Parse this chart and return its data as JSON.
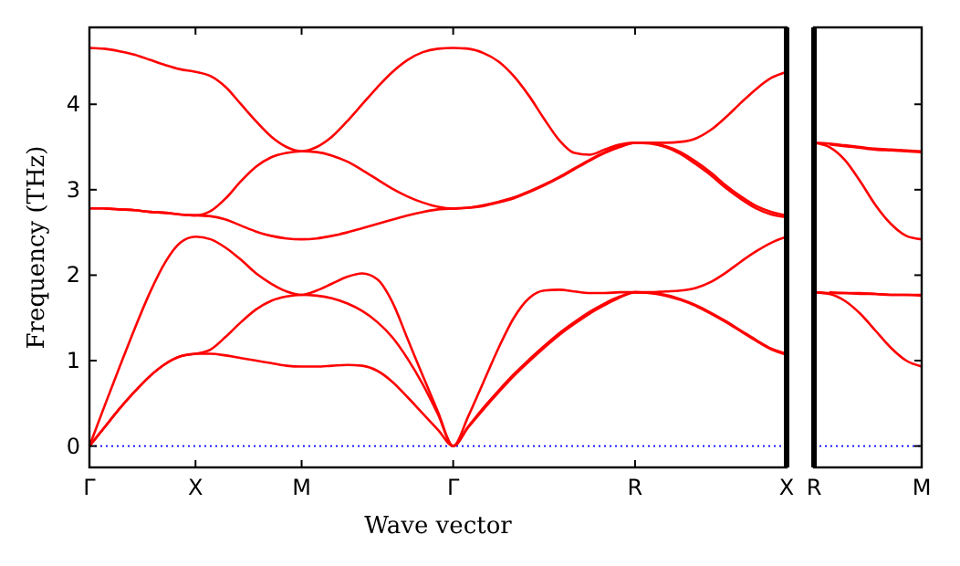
{
  "chart_data": [
    {
      "type": "line",
      "xlabel": "Wave vector",
      "ylabel": "Frequency (THz)",
      "categories": [
        "Γ",
        null,
        null,
        null,
        null,
        null,
        null,
        "X",
        null,
        null,
        null,
        null,
        null,
        null,
        "M",
        null,
        null,
        null,
        null,
        null,
        null,
        null,
        null,
        null,
        "Γ",
        null,
        null,
        null,
        null,
        null,
        null,
        null,
        null,
        null,
        null,
        null,
        "R",
        null,
        null,
        null,
        null,
        null,
        null,
        null,
        null,
        null,
        "X"
      ],
      "ylim": [
        -0.25,
        4.9
      ],
      "yticks": [
        0,
        1,
        2,
        3,
        4
      ],
      "grid": false,
      "marker": "none",
      "line_style": "solid",
      "ref_lines": [
        {
          "axis": "y",
          "value": 0,
          "color": "#0000ff",
          "line_style": "dotted"
        }
      ],
      "series": [
        {
          "color": "#ff0000",
          "values": [
            0,
            0.22,
            0.44,
            0.64,
            0.82,
            0.96,
            1.05,
            1.08,
            1.08,
            1.06,
            1.03,
            1.0,
            0.97,
            0.94,
            0.93,
            0.93,
            0.94,
            0.95,
            0.94,
            0.88,
            0.75,
            0.57,
            0.38,
            0.19,
            0,
            0.22,
            0.43,
            0.63,
            0.82,
            0.99,
            1.15,
            1.3,
            1.43,
            1.55,
            1.65,
            1.74,
            1.8,
            1.79,
            1.77,
            1.72,
            1.65,
            1.56,
            1.46,
            1.35,
            1.24,
            1.14,
            1.08
          ]
        },
        {
          "color": "#ff0000",
          "values": [
            0,
            0.22,
            0.44,
            0.64,
            0.82,
            0.96,
            1.05,
            1.08,
            1.13,
            1.28,
            1.45,
            1.6,
            1.7,
            1.75,
            1.77,
            1.76,
            1.73,
            1.67,
            1.58,
            1.45,
            1.27,
            1.02,
            0.72,
            0.37,
            0,
            0.23,
            0.45,
            0.65,
            0.84,
            1.01,
            1.17,
            1.32,
            1.45,
            1.57,
            1.67,
            1.75,
            1.8,
            1.79,
            1.76,
            1.71,
            1.64,
            1.55,
            1.45,
            1.34,
            1.23,
            1.13,
            1.07
          ]
        },
        {
          "color": "#ff0000",
          "values": [
            0,
            0.47,
            0.93,
            1.38,
            1.8,
            2.15,
            2.38,
            2.45,
            2.42,
            2.32,
            2.18,
            2.02,
            1.9,
            1.81,
            1.77,
            1.82,
            1.9,
            1.98,
            2.02,
            1.95,
            1.68,
            1.25,
            0.82,
            0.4,
            0,
            0.35,
            0.75,
            1.15,
            1.5,
            1.73,
            1.82,
            1.83,
            1.81,
            1.79,
            1.79,
            1.8,
            1.8,
            1.8,
            1.81,
            1.82,
            1.85,
            1.92,
            2.03,
            2.16,
            2.28,
            2.38,
            2.45
          ]
        },
        {
          "color": "#ff0000",
          "values": [
            2.78,
            2.78,
            2.77,
            2.76,
            2.74,
            2.73,
            2.71,
            2.7,
            2.69,
            2.65,
            2.58,
            2.51,
            2.46,
            2.43,
            2.42,
            2.43,
            2.46,
            2.5,
            2.55,
            2.6,
            2.65,
            2.7,
            2.74,
            2.77,
            2.78,
            2.79,
            2.81,
            2.85,
            2.9,
            2.97,
            3.05,
            3.14,
            3.24,
            3.34,
            3.43,
            3.5,
            3.55,
            3.54,
            3.5,
            3.42,
            3.3,
            3.17,
            3.02,
            2.89,
            2.78,
            2.71,
            2.68
          ]
        },
        {
          "color": "#ff0000",
          "values": [
            null,
            2.78,
            2.77,
            2.76,
            2.74,
            2.73,
            2.71,
            2.7,
            2.75,
            2.9,
            3.1,
            3.27,
            3.38,
            3.43,
            3.45,
            3.44,
            3.4,
            3.33,
            3.23,
            3.12,
            3.01,
            2.92,
            2.85,
            2.8,
            2.78,
            2.79,
            2.82,
            2.86,
            2.91,
            2.98,
            3.06,
            3.15,
            3.25,
            3.35,
            3.44,
            3.51,
            3.55,
            3.55,
            3.51,
            3.44,
            3.33,
            3.2,
            3.05,
            2.92,
            2.81,
            2.74,
            2.7
          ]
        },
        {
          "color": "#ff0000",
          "values": [
            4.66,
            4.65,
            4.62,
            4.58,
            4.52,
            4.46,
            4.41,
            4.38,
            4.33,
            4.2,
            4.0,
            3.8,
            3.62,
            3.5,
            3.45,
            3.5,
            3.62,
            3.8,
            4.0,
            4.2,
            4.38,
            4.52,
            4.61,
            4.65,
            4.66,
            4.65,
            4.6,
            4.5,
            4.33,
            4.1,
            3.83,
            3.58,
            3.43,
            3.41,
            3.47,
            3.53,
            3.55,
            3.55,
            3.55,
            3.56,
            3.6,
            3.7,
            3.85,
            4.02,
            4.18,
            4.31,
            4.38
          ]
        }
      ]
    },
    {
      "type": "line",
      "categories": [
        "R",
        null,
        null,
        null,
        null,
        null,
        null,
        "M"
      ],
      "ylim": [
        -0.25,
        4.9
      ],
      "yticks": [
        0,
        1,
        2,
        3,
        4
      ],
      "tick_labels": "x",
      "grid": false,
      "marker": "none",
      "line_style": "solid",
      "ref_lines": [
        {
          "axis": "y",
          "value": 0,
          "color": "#0000ff",
          "line_style": "dotted"
        }
      ],
      "series": [
        {
          "color": "#ff0000",
          "values": [
            1.8,
            1.78,
            1.7,
            1.55,
            1.35,
            1.15,
            1.0,
            0.93
          ]
        },
        {
          "color": "#ff0000",
          "values": [
            1.8,
            1.79,
            1.79,
            1.78,
            1.78,
            1.77,
            1.77,
            1.77
          ]
        },
        {
          "color": "#ff0000",
          "values": [
            null,
            1.8,
            1.79,
            1.79,
            1.78,
            1.77,
            1.77,
            1.76
          ]
        },
        {
          "color": "#ff0000",
          "values": [
            3.55,
            3.5,
            3.35,
            3.1,
            2.82,
            2.6,
            2.46,
            2.42
          ]
        },
        {
          "color": "#ff0000",
          "values": [
            3.55,
            3.54,
            3.52,
            3.5,
            3.48,
            3.47,
            3.46,
            3.45
          ]
        },
        {
          "color": "#ff0000",
          "values": [
            null,
            3.53,
            3.51,
            3.49,
            3.47,
            3.46,
            3.45,
            3.44
          ]
        }
      ]
    }
  ]
}
